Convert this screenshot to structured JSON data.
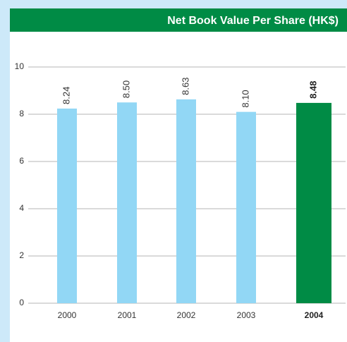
{
  "chart_data": {
    "type": "bar",
    "title": "Net Book Value Per Share (HK$)",
    "categories": [
      "2000",
      "2001",
      "2002",
      "2003",
      "2004"
    ],
    "values": [
      8.24,
      8.5,
      8.63,
      8.1,
      8.48
    ],
    "value_labels": [
      "8.24",
      "8.50",
      "8.63",
      "8.10",
      "8.48"
    ],
    "colors": [
      "#92d7f5",
      "#92d7f5",
      "#92d7f5",
      "#92d7f5",
      "#008b45"
    ],
    "bold": [
      false,
      false,
      false,
      false,
      true
    ],
    "ylim": [
      0,
      10
    ],
    "yticks": [
      0,
      2,
      4,
      6,
      8,
      10
    ],
    "grid": true
  }
}
